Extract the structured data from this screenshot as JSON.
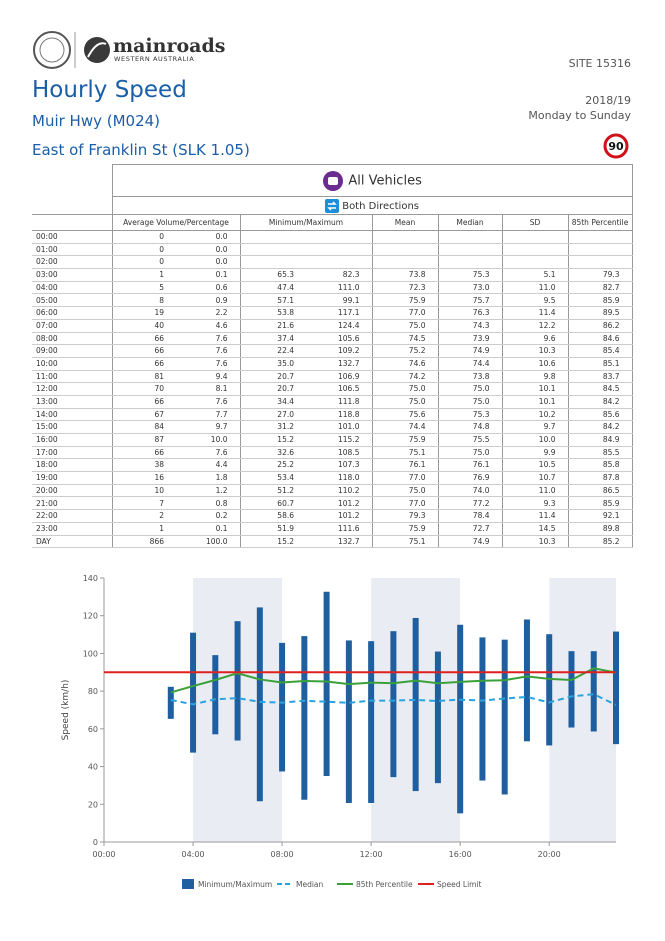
{
  "header": {
    "logo_name": "mainroads",
    "logo_sub": "WESTERN AUSTRALIA",
    "site": "SITE 15316",
    "title": "Hourly Speed",
    "road": "Muir Hwy (M024)",
    "location": "East of Franklin St (SLK 1.05)",
    "period": "2018/19",
    "days": "Monday to Sunday",
    "speed_limit": 90
  },
  "table": {
    "vehicles": "All Vehicles",
    "direction": "Both Directions",
    "columns": [
      "Average Volume/Percentage",
      "Minimum/Maximum",
      "Mean",
      "Median",
      "SD",
      "85th Percentile"
    ],
    "rows": [
      [
        "00:00",
        "0",
        "0.0",
        null,
        null,
        null,
        null,
        null,
        null
      ],
      [
        "01:00",
        "0",
        "0.0",
        null,
        null,
        null,
        null,
        null,
        null
      ],
      [
        "02:00",
        "0",
        "0.0",
        null,
        null,
        null,
        null,
        null,
        null
      ],
      [
        "03:00",
        "1",
        "0.1",
        "65.3",
        "82.3",
        "73.8",
        "75.3",
        "5.1",
        "79.3"
      ],
      [
        "04:00",
        "5",
        "0.6",
        "47.4",
        "111.0",
        "72.3",
        "73.0",
        "11.0",
        "82.7"
      ],
      [
        "05:00",
        "8",
        "0.9",
        "57.1",
        "99.1",
        "75.9",
        "75.7",
        "9.5",
        "85.9"
      ],
      [
        "06:00",
        "19",
        "2.2",
        "53.8",
        "117.1",
        "77.0",
        "76.3",
        "11.4",
        "89.5"
      ],
      [
        "07:00",
        "40",
        "4.6",
        "21.6",
        "124.4",
        "75.0",
        "74.3",
        "12.2",
        "86.2"
      ],
      [
        "08:00",
        "66",
        "7.6",
        "37.4",
        "105.6",
        "74.5",
        "73.9",
        "9.6",
        "84.6"
      ],
      [
        "09:00",
        "66",
        "7.6",
        "22.4",
        "109.2",
        "75.2",
        "74.9",
        "10.3",
        "85.4"
      ],
      [
        "10:00",
        "66",
        "7.6",
        "35.0",
        "132.7",
        "74.6",
        "74.4",
        "10.6",
        "85.1"
      ],
      [
        "11:00",
        "81",
        "9.4",
        "20.7",
        "106.9",
        "74.2",
        "73.8",
        "9.8",
        "83.7"
      ],
      [
        "12:00",
        "70",
        "8.1",
        "20.7",
        "106.5",
        "75.0",
        "75.0",
        "10.1",
        "84.5"
      ],
      [
        "13:00",
        "66",
        "7.6",
        "34.4",
        "111.8",
        "75.0",
        "75.0",
        "10.1",
        "84.2"
      ],
      [
        "14:00",
        "67",
        "7.7",
        "27.0",
        "118.8",
        "75.6",
        "75.3",
        "10.2",
        "85.6"
      ],
      [
        "15:00",
        "84",
        "9.7",
        "31.2",
        "101.0",
        "74.4",
        "74.8",
        "9.7",
        "84.2"
      ],
      [
        "16:00",
        "87",
        "10.0",
        "15.2",
        "115.2",
        "75.9",
        "75.5",
        "10.0",
        "84.9"
      ],
      [
        "17:00",
        "66",
        "7.6",
        "32.6",
        "108.5",
        "75.1",
        "75.0",
        "9.9",
        "85.5"
      ],
      [
        "18:00",
        "38",
        "4.4",
        "25.2",
        "107.3",
        "76.1",
        "76.1",
        "10.5",
        "85.8"
      ],
      [
        "19:00",
        "16",
        "1.8",
        "53.4",
        "118.0",
        "77.0",
        "76.9",
        "10.7",
        "87.8"
      ],
      [
        "20:00",
        "10",
        "1.2",
        "51.2",
        "110.2",
        "75.0",
        "74.0",
        "11.0",
        "86.5"
      ],
      [
        "21:00",
        "7",
        "0.8",
        "60.7",
        "101.2",
        "77.0",
        "77.2",
        "9.3",
        "85.9"
      ],
      [
        "22:00",
        "2",
        "0.2",
        "58.6",
        "101.2",
        "79.3",
        "78.4",
        "11.4",
        "92.1"
      ],
      [
        "23:00",
        "1",
        "0.1",
        "51.9",
        "111.6",
        "75.9",
        "72.7",
        "14.5",
        "89.8"
      ],
      [
        "DAY",
        "866",
        "100.0",
        "15.2",
        "132.7",
        "75.1",
        "74.9",
        "10.3",
        "85.2"
      ]
    ]
  },
  "chart": {
    "y_label": "Speed (km/h)",
    "ylim": [
      0,
      140
    ],
    "yticks": [
      0,
      20,
      40,
      60,
      80,
      100,
      120,
      140
    ],
    "xlim": [
      0,
      23
    ],
    "xticks": [
      {
        "value": 0,
        "label": "00:00"
      },
      {
        "value": 4,
        "label": "04:00"
      },
      {
        "value": 8,
        "label": "08:00"
      },
      {
        "value": 12,
        "label": "12:00"
      },
      {
        "value": 16,
        "label": "16:00"
      },
      {
        "value": 20,
        "label": "20:00"
      }
    ],
    "legend": [
      {
        "label": "Minimum/Maximum",
        "color": "#1f5fa0"
      },
      {
        "label": "Median",
        "color": "#29a3e0"
      },
      {
        "label": "85th Percentile",
        "color": "#3aa13a"
      },
      {
        "label": "Speed Limit",
        "color": "#e02020"
      }
    ]
  }
}
